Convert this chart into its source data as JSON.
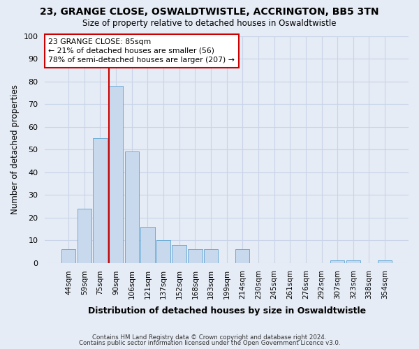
{
  "title": "23, GRANGE CLOSE, OSWALDTWISTLE, ACCRINGTON, BB5 3TN",
  "subtitle": "Size of property relative to detached houses in Oswaldtwistle",
  "xlabel": "Distribution of detached houses by size in Oswaldtwistle",
  "ylabel": "Number of detached properties",
  "bar_labels": [
    "44sqm",
    "59sqm",
    "75sqm",
    "90sqm",
    "106sqm",
    "121sqm",
    "137sqm",
    "152sqm",
    "168sqm",
    "183sqm",
    "199sqm",
    "214sqm",
    "230sqm",
    "245sqm",
    "261sqm",
    "276sqm",
    "292sqm",
    "307sqm",
    "323sqm",
    "338sqm",
    "354sqm"
  ],
  "bar_values": [
    6,
    24,
    55,
    78,
    49,
    16,
    10,
    8,
    6,
    6,
    0,
    6,
    0,
    0,
    0,
    0,
    0,
    1,
    1,
    0,
    1
  ],
  "bar_color": "#c8d9ee",
  "bar_edge_color": "#6aabd6",
  "ylim": [
    0,
    100
  ],
  "yticks": [
    0,
    10,
    20,
    30,
    40,
    50,
    60,
    70,
    80,
    90,
    100
  ],
  "vline_x_index": 3,
  "vline_color": "#cc0000",
  "annotation_title": "23 GRANGE CLOSE: 85sqm",
  "annotation_line1": "← 21% of detached houses are smaller (56)",
  "annotation_line2": "78% of semi-detached houses are larger (207) →",
  "annotation_box_color": "#cc0000",
  "annotation_bg": "#ffffff",
  "grid_color": "#c8d4e8",
  "background_color": "#e6ecf5",
  "footer1": "Contains HM Land Registry data © Crown copyright and database right 2024.",
  "footer2": "Contains public sector information licensed under the Open Government Licence v3.0."
}
